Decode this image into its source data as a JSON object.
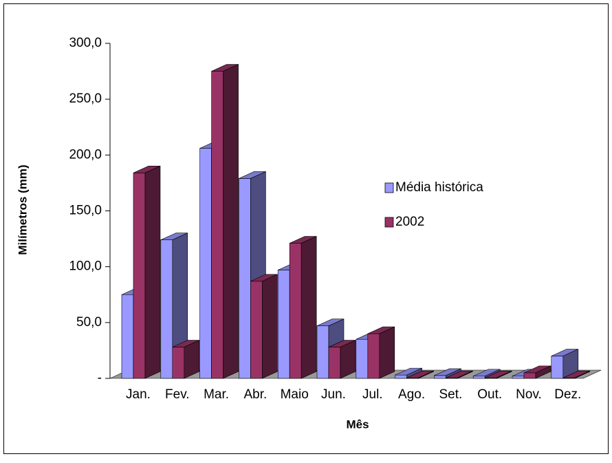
{
  "chart_data": {
    "type": "bar3d",
    "x_label": "Mês",
    "y_label": "Milímetros (mm)",
    "categories": [
      "Jan.",
      "Fev.",
      "Mar.",
      "Abr.",
      "Maio",
      "Jun.",
      "Jul.",
      "Ago.",
      "Set.",
      "Out.",
      "Nov.",
      "Dez."
    ],
    "series": [
      {
        "name": "Média histórica",
        "color": "#9999ff",
        "values": [
          75,
          124,
          206,
          179,
          97,
          47,
          35,
          3,
          2.5,
          2,
          2,
          20
        ]
      },
      {
        "name": "2002",
        "color": "#993366",
        "values": [
          184,
          28,
          275,
          87,
          121,
          28,
          40,
          0.5,
          0.5,
          0.5,
          5,
          0.5
        ]
      }
    ],
    "ylim": [
      0,
      300
    ],
    "yticks": [
      {
        "value": 0,
        "label": "-"
      },
      {
        "value": 50,
        "label": "50,0"
      },
      {
        "value": 100,
        "label": "100,0"
      },
      {
        "value": 150,
        "label": "150,0"
      },
      {
        "value": 200,
        "label": "200,0"
      },
      {
        "value": 250,
        "label": "250,0"
      },
      {
        "value": 300,
        "label": "300,0"
      }
    ],
    "legend": "right"
  }
}
